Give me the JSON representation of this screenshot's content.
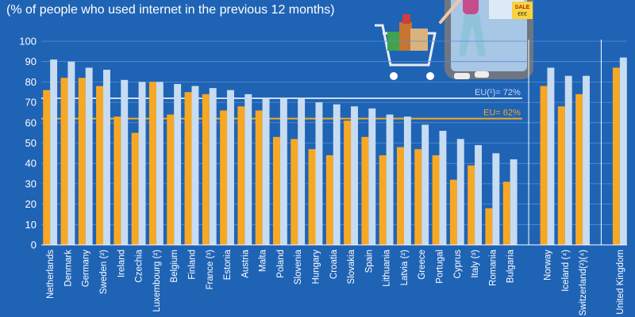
{
  "subtitle": "(% of people who used internet in the previous 12 months)",
  "colors": {
    "background": "#1f63b5",
    "series_ordered": "#f7a823",
    "series_used": "#c7dcf2",
    "eu_ordered_line": "#f7a823",
    "eu_used_line": "#c7dcf2",
    "grid": "#5b8fd0"
  },
  "chart_data": {
    "type": "bar",
    "ylim": [
      0,
      100
    ],
    "yticks": [
      0,
      10,
      20,
      30,
      40,
      50,
      60,
      70,
      80,
      90,
      100
    ],
    "grid": true,
    "categories": [
      "Netherlands",
      "Denmark",
      "Germany",
      "Sweden (²)",
      "Ireland",
      "Czechia",
      "Luxembourg (²)",
      "Belgium",
      "Finland",
      "France (³)",
      "Estonia",
      "Austria",
      "Malta",
      "Poland",
      "Slovenia",
      "Hungary",
      "Croatia",
      "Slovakia",
      "Spain",
      "Lithuania",
      "Latvia (²)",
      "Greece",
      "Portugal",
      "Cyprus",
      "Italy (³)",
      "Romania",
      "Bulgaria",
      "Norway",
      "Iceland (⁴)",
      "Switzerland(²)(⁴)",
      "United Kingdom"
    ],
    "groups": [
      27,
      3,
      1
    ],
    "series": [
      {
        "color": "#f7a823",
        "values": [
          76,
          82,
          82,
          78,
          63,
          55,
          80,
          64,
          75,
          74,
          66,
          68,
          66,
          53,
          52,
          47,
          44,
          61,
          53,
          44,
          48,
          47,
          44,
          32,
          39,
          18,
          31,
          78,
          68,
          74,
          87
        ]
      },
      {
        "color": "#c7dcf2",
        "values": [
          91,
          90,
          87,
          86,
          81,
          80,
          80,
          79,
          78,
          77,
          76,
          74,
          72,
          72,
          72,
          70,
          69,
          68,
          67,
          64,
          63,
          59,
          56,
          52,
          49,
          45,
          42,
          87,
          83,
          83,
          92
        ]
      }
    ],
    "reference_lines": [
      {
        "label": "EU(¹)= 72%",
        "value": 72,
        "color": "#c7dcf2"
      },
      {
        "label": "EU= 62%",
        "value": 62,
        "color": "#f7a823"
      }
    ]
  }
}
